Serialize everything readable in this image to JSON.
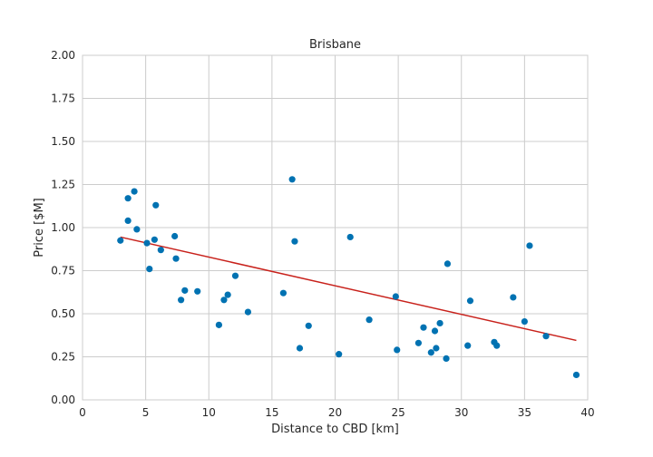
{
  "chart_data": {
    "type": "scatter",
    "title": "Brisbane",
    "xlabel": "Distance to CBD [km]",
    "ylabel": "Price [$M]",
    "xlim": [
      0,
      40
    ],
    "ylim": [
      0,
      2
    ],
    "xticks": [
      "0",
      "5",
      "10",
      "15",
      "20",
      "25",
      "30",
      "35",
      "40"
    ],
    "yticks": [
      "0.00",
      "0.25",
      "0.50",
      "0.75",
      "1.00",
      "1.25",
      "1.50",
      "1.75",
      "2.00"
    ],
    "grid": true,
    "point_color": "#0072b2",
    "line_color": "#c8211b",
    "points": [
      [
        3.0,
        0.925
      ],
      [
        3.6,
        1.17
      ],
      [
        3.6,
        1.04
      ],
      [
        4.1,
        1.21
      ],
      [
        4.3,
        0.99
      ],
      [
        5.1,
        0.91
      ],
      [
        5.3,
        0.76
      ],
      [
        5.7,
        0.93
      ],
      [
        5.8,
        1.13
      ],
      [
        6.2,
        0.87
      ],
      [
        7.3,
        0.95
      ],
      [
        7.4,
        0.82
      ],
      [
        7.8,
        0.58
      ],
      [
        8.1,
        0.635
      ],
      [
        9.1,
        0.63
      ],
      [
        10.8,
        0.435
      ],
      [
        11.2,
        0.58
      ],
      [
        11.5,
        0.61
      ],
      [
        12.1,
        0.72
      ],
      [
        13.1,
        0.51
      ],
      [
        15.9,
        0.62
      ],
      [
        16.6,
        1.28
      ],
      [
        16.8,
        0.92
      ],
      [
        17.2,
        0.3
      ],
      [
        17.9,
        0.43
      ],
      [
        20.3,
        0.265
      ],
      [
        21.2,
        0.945
      ],
      [
        22.7,
        0.465
      ],
      [
        24.8,
        0.6
      ],
      [
        24.9,
        0.29
      ],
      [
        26.6,
        0.33
      ],
      [
        27.0,
        0.42
      ],
      [
        27.6,
        0.275
      ],
      [
        27.9,
        0.4
      ],
      [
        28.0,
        0.3
      ],
      [
        28.3,
        0.445
      ],
      [
        28.8,
        0.24
      ],
      [
        28.9,
        0.79
      ],
      [
        30.5,
        0.315
      ],
      [
        30.7,
        0.575
      ],
      [
        32.6,
        0.335
      ],
      [
        32.8,
        0.315
      ],
      [
        34.1,
        0.595
      ],
      [
        35.0,
        0.455
      ],
      [
        35.4,
        0.895
      ],
      [
        36.7,
        0.37
      ],
      [
        39.1,
        0.145
      ]
    ],
    "trendline": [
      [
        3.0,
        0.945
      ],
      [
        39.1,
        0.345
      ]
    ]
  }
}
